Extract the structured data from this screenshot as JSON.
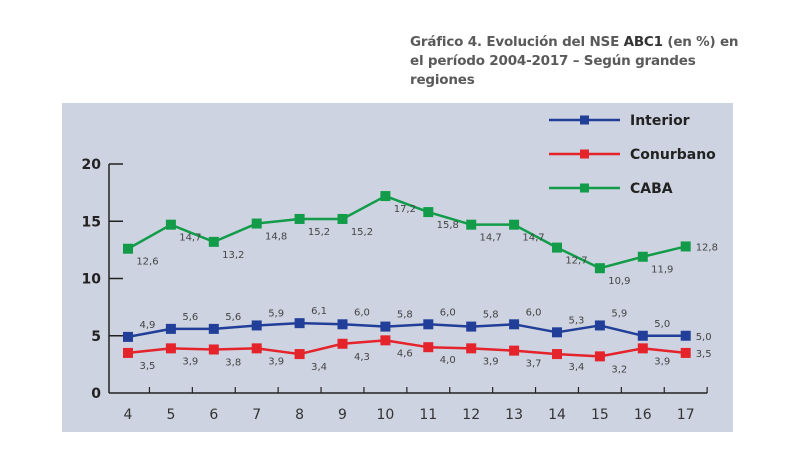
{
  "chart_data": {
    "type": "line",
    "title_parts": {
      "prefix": "Gráfico 4. Evolución del NSE ",
      "emphasis": "ABC1",
      "suffix": " (en %) en el período 2004-2017 – Según grandes regiones"
    },
    "title": "Gráfico 4. Evolución del NSE ABC1 (en %) en el período 2004-2017 – Según grandes regiones",
    "xlabel": "",
    "ylabel": "",
    "categories": [
      "4",
      "5",
      "6",
      "7",
      "8",
      "9",
      "10",
      "11",
      "12",
      "13",
      "14",
      "15",
      "16",
      "17"
    ],
    "ylim": [
      0,
      20
    ],
    "yticks": [
      0,
      5,
      10,
      15,
      20
    ],
    "ytick_labels": [
      "0",
      "5",
      "10",
      "15",
      "20"
    ],
    "grid": false,
    "legend_position": "top-right",
    "series": [
      {
        "name": "Interior",
        "color": "#213f99",
        "values": [
          4.9,
          5.6,
          5.6,
          5.9,
          6.1,
          6.0,
          5.8,
          6.0,
          5.8,
          6.0,
          5.3,
          5.9,
          5.0,
          5.0
        ],
        "labels": [
          "4,9",
          "5,6",
          "5,6",
          "5,9",
          "6,1",
          "6,0",
          "5,8",
          "6,0",
          "5,8",
          "6,0",
          "5,3",
          "5,9",
          "5,0",
          "5,0"
        ]
      },
      {
        "name": "Conurbano",
        "color": "#e4232b",
        "values": [
          3.5,
          3.9,
          3.8,
          3.9,
          3.4,
          4.3,
          4.6,
          4.0,
          3.9,
          3.7,
          3.4,
          3.2,
          3.9,
          3.5
        ],
        "labels": [
          "3,5",
          "3,9",
          "3,8",
          "3,9",
          "3,4",
          "4,3",
          "4,6",
          "4,0",
          "3,9",
          "3,7",
          "3,4",
          "3,2",
          "3,9",
          "3,5"
        ]
      },
      {
        "name": "CABA",
        "color": "#129c4a",
        "values": [
          12.6,
          14.7,
          13.2,
          14.8,
          15.2,
          15.2,
          17.2,
          15.8,
          14.7,
          14.7,
          12.7,
          10.9,
          11.9,
          12.8
        ],
        "labels": [
          "12,6",
          "14,7",
          "13,2",
          "14,8",
          "15,2",
          "15,2",
          "17,2",
          "15,8",
          "14,7",
          "14,7",
          "12,7",
          "10,9",
          "11,9",
          "12,8"
        ]
      }
    ]
  }
}
